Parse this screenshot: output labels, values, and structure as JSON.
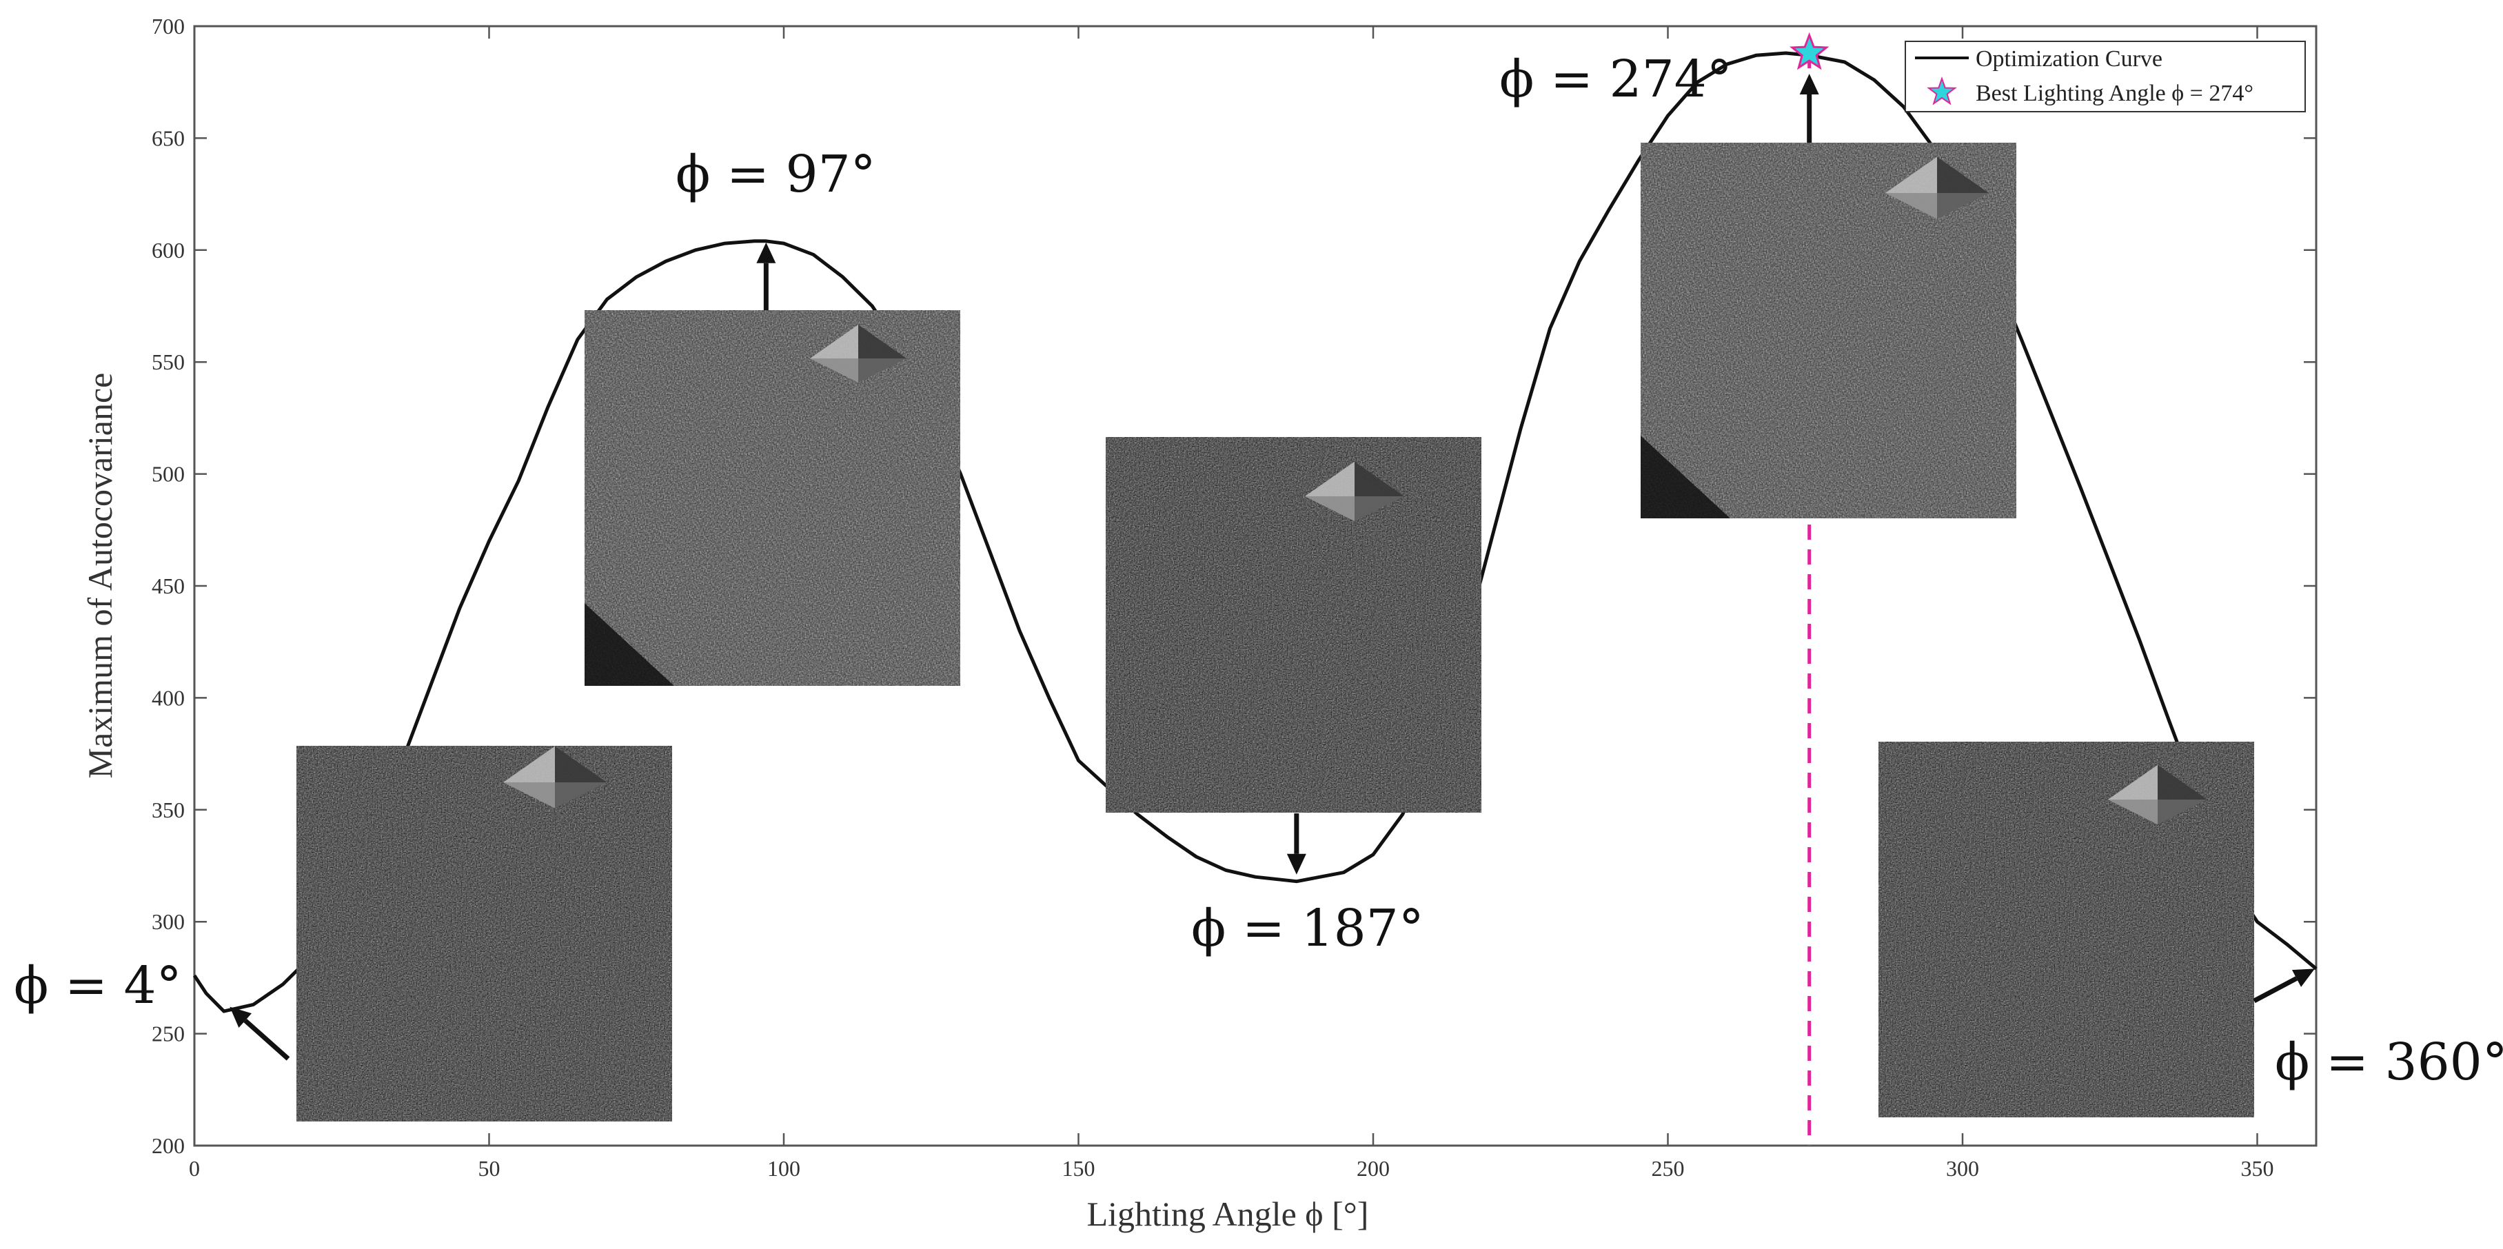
{
  "chart_data": {
    "type": "line",
    "xlabel": "Lighting Angle ϕ [°]",
    "ylabel": "Maximum of Autocovariance",
    "xlim": [
      0,
      360
    ],
    "ylim": [
      200,
      700
    ],
    "xticks": [
      0,
      50,
      100,
      150,
      200,
      250,
      300,
      350
    ],
    "yticks": [
      200,
      250,
      300,
      350,
      400,
      450,
      500,
      550,
      600,
      650,
      700
    ],
    "grid": false,
    "legend_position": "top-right",
    "series": [
      {
        "name": "Optimization Curve",
        "x": [
          0,
          2,
          5,
          10,
          15,
          20,
          25,
          30,
          35,
          40,
          45,
          50,
          55,
          60,
          65,
          70,
          75,
          80,
          85,
          90,
          95,
          97,
          100,
          105,
          110,
          115,
          120,
          125,
          130,
          135,
          140,
          145,
          150,
          155,
          160,
          165,
          170,
          175,
          180,
          187,
          195,
          200,
          205,
          210,
          215,
          220,
          225,
          230,
          235,
          240,
          245,
          250,
          255,
          260,
          265,
          270,
          274,
          280,
          285,
          290,
          295,
          300,
          305,
          310,
          315,
          320,
          325,
          330,
          335,
          340,
          345,
          350,
          355,
          360
        ],
        "y": [
          276,
          268,
          260,
          263,
          272,
          285,
          305,
          335,
          370,
          405,
          440,
          470,
          497,
          530,
          560,
          578,
          588,
          595,
          600,
          603,
          604,
          604,
          603,
          598,
          588,
          575,
          555,
          530,
          500,
          465,
          430,
          400,
          372,
          360,
          348,
          338,
          329,
          323,
          320,
          318,
          322,
          330,
          348,
          378,
          420,
          470,
          520,
          565,
          595,
          618,
          640,
          660,
          675,
          683,
          687,
          688,
          687,
          684,
          676,
          664,
          646,
          620,
          592,
          560,
          527,
          494,
          460,
          426,
          390,
          355,
          320,
          300,
          290,
          279
        ]
      },
      {
        "name": "Best Lighting Angle ϕ = 274°",
        "marker": "star",
        "x": [
          274
        ],
        "y": [
          688
        ]
      }
    ],
    "reference_line": {
      "x": 274,
      "style": "dashed"
    },
    "annotations": [
      {
        "text": "ϕ = 4°",
        "x": 4,
        "y": 260
      },
      {
        "text": "ϕ = 97°",
        "x": 97,
        "y": 604
      },
      {
        "text": "ϕ = 187°",
        "x": 187,
        "y": 318
      },
      {
        "text": "ϕ = 274°",
        "x": 274,
        "y": 688
      },
      {
        "text": "ϕ = 360°",
        "x": 360,
        "y": 279
      }
    ]
  },
  "colors": {
    "curve": "#111111",
    "star_fill": "#2fd5dc",
    "star_stroke": "#e0249a",
    "dashed_line": "#e0249a",
    "inset_background": "#2a2a2a"
  }
}
